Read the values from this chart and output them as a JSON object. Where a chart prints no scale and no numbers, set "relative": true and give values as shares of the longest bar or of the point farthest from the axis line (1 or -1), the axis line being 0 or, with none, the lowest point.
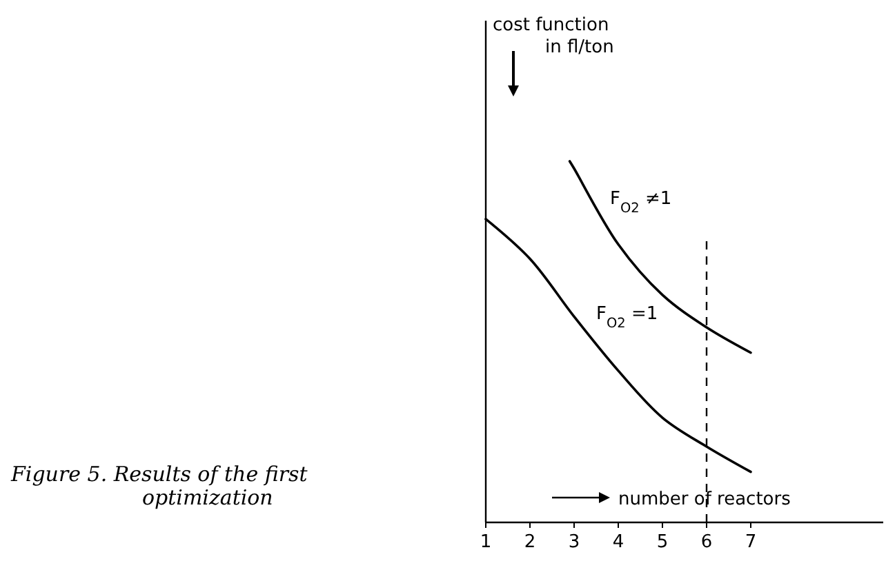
{
  "chart_data": {
    "type": "line",
    "relative": true,
    "xlabel": "number of reactors",
    "xlim": [
      1,
      10
    ],
    "xticks": [
      1,
      2,
      3,
      4,
      5,
      6,
      7
    ],
    "grid": false,
    "marker": "none",
    "line_style": "solid",
    "series": [
      {
        "name": "F$_{O2}$ ≠1",
        "color": "#000000",
        "x": [
          2.9,
          3,
          4,
          5,
          6,
          7
        ],
        "values": [
          1.0,
          0.98,
          0.77,
          0.63,
          0.54,
          0.47
        ]
      },
      {
        "name": "F$_{O2}$ =1",
        "color": "#000000",
        "x": [
          1,
          2,
          3,
          4,
          5,
          6,
          7
        ],
        "values": [
          0.84,
          0.73,
          0.57,
          0.42,
          0.29,
          0.21,
          0.14
        ]
      }
    ],
    "ref_lines": [
      {
        "axis": "x",
        "value": 6,
        "line_style": "dashed",
        "color": "#000000"
      }
    ],
    "annotations": [
      "Figure 5.  Results of the first optimization",
      "cost function in fl/ton"
    ]
  }
}
